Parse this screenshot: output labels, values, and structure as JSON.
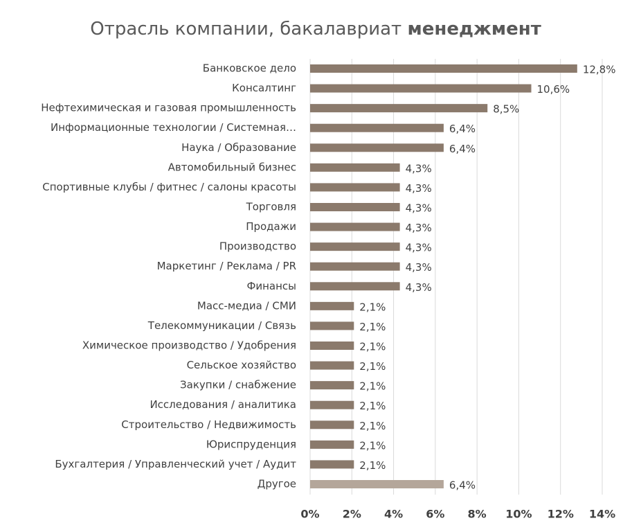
{
  "chart_data": {
    "type": "bar",
    "orientation": "horizontal",
    "title": "Отрасль компании, бакалавриат",
    "title_bold": "менеджмент",
    "categories": [
      "Банковское дело",
      "Консалтинг",
      "Нефтехимическая и газовая промышленность",
      "Информационные технологии  /  Системная…",
      "Наука / Образование",
      "Автомобильный бизнес",
      "Спортивные клубы / фитнес / салоны красоты",
      "Торговля",
      "Продажи",
      "Производство",
      "Маркетинг / Реклама / PR",
      "Финансы",
      "Масс-медиа / СМИ",
      "Телекоммуникации  /  Связь",
      "Химическое производство  /  Удобрения",
      "Сельское хозяйство",
      "Закупки / снабжение",
      "Исследования  / аналитика",
      "Строительство / Недвижимость",
      "Юриспруденция",
      "Бухгалтерия / Управленческий учет / Аудит",
      "Другое"
    ],
    "values": [
      12.8,
      10.6,
      8.5,
      6.4,
      6.4,
      4.3,
      4.3,
      4.3,
      4.3,
      4.3,
      4.3,
      4.3,
      2.1,
      2.1,
      2.1,
      2.1,
      2.1,
      2.1,
      2.1,
      2.1,
      2.1,
      6.4
    ],
    "value_labels": [
      "12,8%",
      "10,6%",
      "8,5%",
      "6,4%",
      "6,4%",
      "4,3%",
      "4,3%",
      "4,3%",
      "4,3%",
      "4,3%",
      "4,3%",
      "4,3%",
      "2,1%",
      "2,1%",
      "2,1%",
      "2,1%",
      "2,1%",
      "2,1%",
      "2,1%",
      "2,1%",
      "2,1%",
      "6,4%"
    ],
    "colors": [
      "#8b7a6c",
      "#8b7a6c",
      "#8b7a6c",
      "#8b7a6c",
      "#8b7a6c",
      "#8b7a6c",
      "#8b7a6c",
      "#8b7a6c",
      "#8b7a6c",
      "#8b7a6c",
      "#8b7a6c",
      "#8b7a6c",
      "#8b7a6c",
      "#8b7a6c",
      "#8b7a6c",
      "#8b7a6c",
      "#8b7a6c",
      "#8b7a6c",
      "#8b7a6c",
      "#8b7a6c",
      "#8b7a6c",
      "#b4a69a"
    ],
    "xlim": [
      0,
      14
    ],
    "xticks": [
      {
        "value": 0,
        "label": "0%"
      },
      {
        "value": 2,
        "label": "2%"
      },
      {
        "value": 4,
        "label": "4%"
      },
      {
        "value": 6,
        "label": "6%"
      },
      {
        "value": 8,
        "label": "8%"
      },
      {
        "value": 10,
        "label": "10%"
      },
      {
        "value": 12,
        "label": "12%"
      },
      {
        "value": 14,
        "label": "14%"
      }
    ],
    "grid": true
  }
}
